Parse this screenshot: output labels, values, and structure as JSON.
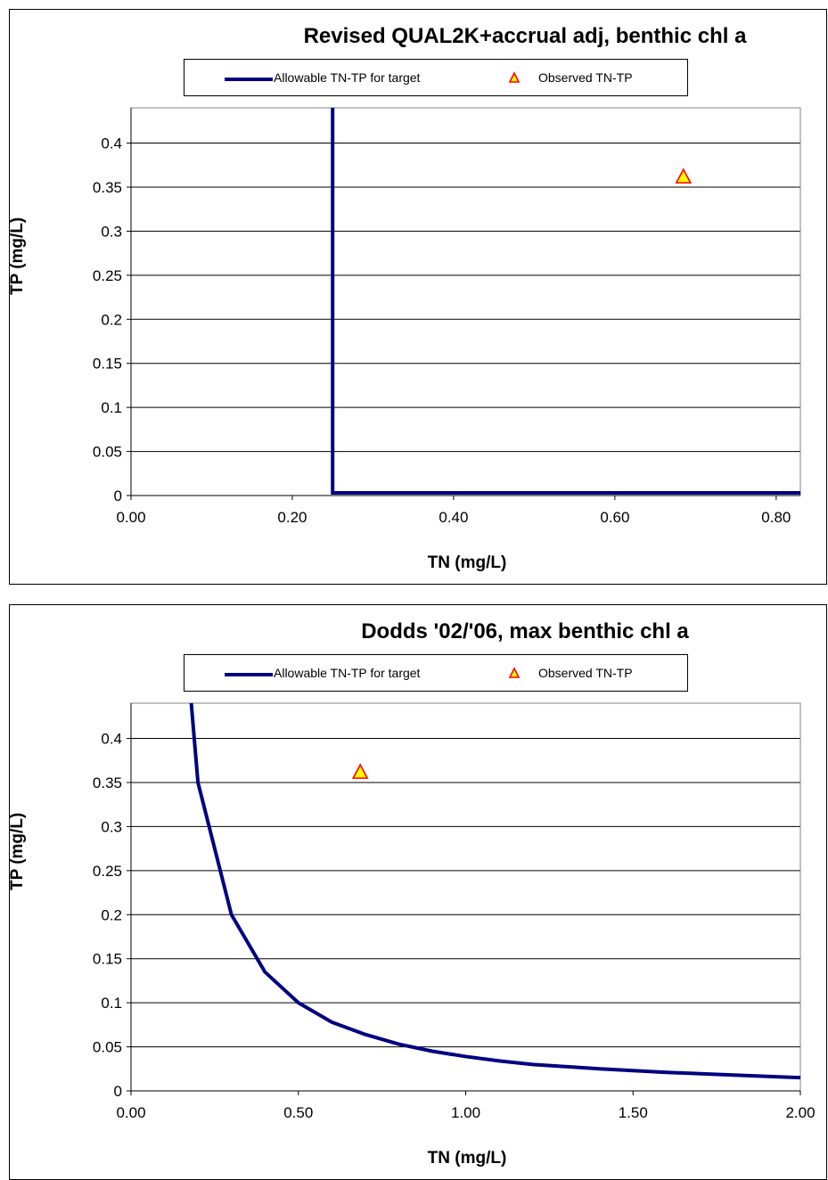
{
  "chart_data": [
    {
      "type": "line",
      "title": "Revised QUAL2K+accrual adj, benthic chl a",
      "xlabel": "TN (mg/L)",
      "ylabel": "TP (mg/L)",
      "xlim": [
        0,
        0.83
      ],
      "ylim": [
        0,
        0.44
      ],
      "x_ticks": [
        "0.00",
        "0.20",
        "0.40",
        "0.60",
        "0.80"
      ],
      "x_tick_values": [
        0,
        0.2,
        0.4,
        0.6,
        0.8
      ],
      "y_ticks": [
        "0",
        "0.05",
        "0.1",
        "0.15",
        "0.2",
        "0.25",
        "0.3",
        "0.35",
        "0.4"
      ],
      "y_tick_values": [
        0,
        0.05,
        0.1,
        0.15,
        0.2,
        0.25,
        0.3,
        0.35,
        0.4
      ],
      "grid": "horizontal",
      "legend_position": "top",
      "series": [
        {
          "name": "Allowable TN-TP for target",
          "kind": "line",
          "color": "#000080",
          "points": [
            [
              0.25,
              0.44
            ],
            [
              0.25,
              0.003
            ],
            [
              0.83,
              0.003
            ]
          ]
        },
        {
          "name": "Observed TN-TP",
          "kind": "marker",
          "marker": "triangle",
          "color": "#ff0000",
          "fill": "#ffff00",
          "points": [
            [
              0.685,
              0.362
            ]
          ]
        }
      ]
    },
    {
      "type": "line",
      "title": "Dodds '02/'06, max benthic chl a",
      "xlabel": "TN (mg/L)",
      "ylabel": "TP (mg/L)",
      "xlim": [
        0,
        2.0
      ],
      "ylim": [
        0,
        0.44
      ],
      "x_ticks": [
        "0.00",
        "0.50",
        "1.00",
        "1.50",
        "2.00"
      ],
      "x_tick_values": [
        0,
        0.5,
        1.0,
        1.5,
        2.0
      ],
      "y_ticks": [
        "0",
        "0.05",
        "0.1",
        "0.15",
        "0.2",
        "0.25",
        "0.3",
        "0.35",
        "0.4"
      ],
      "y_tick_values": [
        0,
        0.05,
        0.1,
        0.15,
        0.2,
        0.25,
        0.3,
        0.35,
        0.4
      ],
      "grid": "horizontal",
      "legend_position": "top",
      "series": [
        {
          "name": "Allowable TN-TP for target",
          "kind": "line",
          "color": "#000080",
          "points": [
            [
              0.18,
              0.44
            ],
            [
              0.2,
              0.35
            ],
            [
              0.3,
              0.2
            ],
            [
              0.4,
              0.135
            ],
            [
              0.5,
              0.1
            ],
            [
              0.6,
              0.078
            ],
            [
              0.7,
              0.064
            ],
            [
              0.8,
              0.053
            ],
            [
              0.9,
              0.045
            ],
            [
              1.0,
              0.039
            ],
            [
              1.1,
              0.034
            ],
            [
              1.2,
              0.03
            ],
            [
              1.4,
              0.025
            ],
            [
              1.6,
              0.021
            ],
            [
              1.8,
              0.018
            ],
            [
              2.0,
              0.015
            ]
          ]
        },
        {
          "name": "Observed TN-TP",
          "kind": "marker",
          "marker": "triangle",
          "color": "#ff0000",
          "fill": "#ffff00",
          "points": [
            [
              0.685,
              0.362
            ]
          ]
        }
      ]
    }
  ]
}
